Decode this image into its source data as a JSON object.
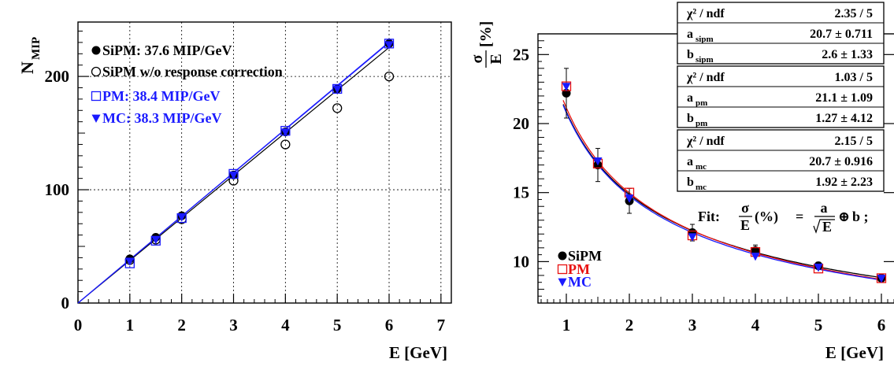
{
  "chart_data": [
    {
      "type": "scatter",
      "xlabel": "E [GeV]",
      "ylabel": "N",
      "ylabel_sub": "MIP",
      "xlim": [
        0,
        7.2
      ],
      "ylim": [
        0,
        248
      ],
      "x_ticks": [
        "0",
        "1",
        "2",
        "3",
        "4",
        "5",
        "6",
        "7"
      ],
      "y_ticks": [
        "0",
        "100",
        "200"
      ],
      "grid": "dashed",
      "legend_position": "top-left",
      "series": [
        {
          "name": "SiPM: 37.6 MIP/GeV",
          "marker": "filled-circle",
          "color": "#000000",
          "x": [
            1,
            1.5,
            2,
            3,
            4,
            5,
            6
          ],
          "y": [
            39,
            58,
            77,
            113,
            151,
            189,
            229
          ],
          "fit_slope": 37.6
        },
        {
          "name": "SiPM w/o response correction",
          "marker": "open-circle",
          "color": "#000000",
          "x": [
            1,
            1.5,
            2,
            3,
            4,
            5,
            6
          ],
          "y": [
            38,
            56,
            74,
            108,
            140,
            172,
            200
          ]
        },
        {
          "name": "PM:   38.4 MIP/GeV",
          "marker": "open-square",
          "color": "#1a1aff",
          "x": [
            1,
            1.5,
            2,
            3,
            4,
            5,
            6
          ],
          "y": [
            35,
            55,
            75,
            114,
            152,
            189,
            229
          ],
          "fit_slope": 38.4
        },
        {
          "name": "MC: 38.3 MIP/GeV",
          "marker": "filled-triangle-down",
          "color": "#1a1aff",
          "x": [
            1,
            1.5,
            2,
            3,
            4,
            5,
            6
          ],
          "y": [
            37,
            56,
            76,
            113,
            151,
            189,
            228
          ],
          "fit_slope": 38.3
        }
      ]
    },
    {
      "type": "scatter",
      "xlabel": "E [GeV]",
      "ylabel": "σ/E [%]",
      "xlim": [
        0.55,
        6.3
      ],
      "ylim": [
        7.0,
        26.5
      ],
      "x_ticks": [
        "1",
        "2",
        "3",
        "4",
        "5",
        "6"
      ],
      "y_ticks": [
        "10",
        "15",
        "20",
        "25"
      ],
      "grid": "none",
      "legend_position": "bottom-left",
      "fit_formula": {
        "prefix": "Fit:",
        "lhs_num": "σ",
        "lhs_den": "E",
        "lhs_unit": "(%)",
        "eq": "=",
        "rhs_num": "a",
        "rhs_den": "E",
        "oplus": "⊕",
        "rhs_tail": "b ;"
      },
      "series": [
        {
          "name": "SiPM",
          "marker": "filled-circle",
          "color": "#000000",
          "x": [
            1,
            1.5,
            2,
            3,
            4,
            5,
            6
          ],
          "y": [
            22.2,
            17.0,
            14.4,
            12.1,
            10.8,
            9.7,
            8.8
          ],
          "err": [
            1.8,
            1.2,
            0.9,
            0.6,
            0.4,
            0.25,
            0.2
          ],
          "fit": {
            "a": 20.7,
            "b": 2.6
          },
          "stats": [
            {
              "name": "χ² / ndf",
              "value": "2.35 / 5"
            },
            {
              "name": "a",
              "sub": "sipm",
              "value": "20.7 ± 0.711"
            },
            {
              "name": "b",
              "sub": "sipm",
              "value": "2.6 ±  1.33"
            }
          ]
        },
        {
          "name": "PM",
          "marker": "open-square",
          "color": "#e81010",
          "x": [
            1,
            1.5,
            2,
            3,
            4,
            5,
            6
          ],
          "y": [
            22.7,
            17.1,
            15.0,
            11.9,
            10.7,
            9.5,
            8.8
          ],
          "fit": {
            "a": 21.1,
            "b": 1.27
          },
          "stats": [
            {
              "name": "χ² / ndf",
              "value": "1.03 / 5"
            },
            {
              "name": "a",
              "sub": "pm",
              "value": "21.1 ±  1.09"
            },
            {
              "name": "b",
              "sub": "pm",
              "value": "1.27 ±  4.12"
            }
          ]
        },
        {
          "name": "MC",
          "marker": "filled-triangle-down",
          "color": "#1a1aff",
          "x": [
            1,
            1.5,
            2,
            3,
            4,
            5,
            6
          ],
          "y": [
            22.7,
            17.3,
            14.6,
            11.8,
            10.4,
            9.6,
            8.8
          ],
          "fit": {
            "a": 20.7,
            "b": 1.92
          },
          "stats": [
            {
              "name": "χ² / ndf",
              "value": "2.15 / 5"
            },
            {
              "name": "a",
              "sub": "mc",
              "value": "20.7 ± 0.916"
            },
            {
              "name": "b",
              "sub": "mc",
              "value": "1.92 ±  2.23"
            }
          ]
        }
      ]
    }
  ]
}
